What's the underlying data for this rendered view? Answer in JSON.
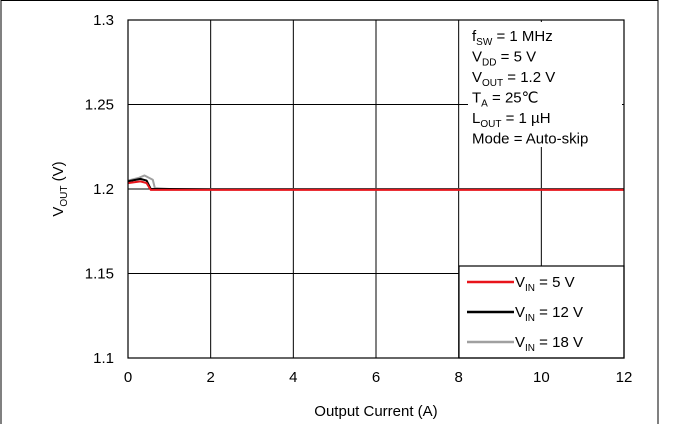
{
  "chart_data": {
    "type": "line",
    "xlabel": "Output Current (A)",
    "ylabel": {
      "main": "V",
      "sub": "OUT",
      "unit": " (V)"
    },
    "xlim": [
      0,
      12
    ],
    "ylim": [
      1.1,
      1.3
    ],
    "x_ticks": [
      0,
      2,
      4,
      6,
      8,
      10,
      12
    ],
    "y_ticks": [
      1.1,
      1.15,
      1.2,
      1.25,
      1.3
    ],
    "x_tick_labels": [
      "0",
      "2",
      "4",
      "6",
      "8",
      "10",
      "12"
    ],
    "y_tick_labels": [
      "1.1",
      "1.15",
      "1.2",
      "1.25",
      "1.3"
    ],
    "grid": true,
    "legend_placement": "bottom-right",
    "annotations": [
      {
        "main": "f",
        "sub": "SW",
        "rest": " = 1 MHz"
      },
      {
        "main": "V",
        "sub": "DD",
        "rest": " = 5 V"
      },
      {
        "main": "V",
        "sub": "OUT",
        "rest": " = 1.2 V"
      },
      {
        "main": "T",
        "sub": "A",
        "rest": " = 25℃"
      },
      {
        "main": "L",
        "sub": "OUT",
        "rest": " = 1 µH"
      },
      {
        "main": "Mode = Auto-skip",
        "sub": "",
        "rest": ""
      }
    ],
    "series": [
      {
        "name": {
          "main": "V",
          "sub": "IN",
          "rest": " = 5 V"
        },
        "color": "#e8141b",
        "x": [
          0,
          0.3,
          0.45,
          0.55,
          1,
          2,
          4,
          6,
          8,
          10,
          12
        ],
        "y": [
          1.2035,
          1.2045,
          1.2035,
          1.1995,
          1.1995,
          1.1995,
          1.1995,
          1.1995,
          1.1995,
          1.1995,
          1.1995
        ]
      },
      {
        "name": {
          "main": "V",
          "sub": "IN",
          "rest": " = 12 V"
        },
        "color": "#000000",
        "x": [
          0,
          0.3,
          0.45,
          0.55,
          1,
          2,
          4,
          6,
          8,
          10,
          12
        ],
        "y": [
          1.2045,
          1.206,
          1.205,
          1.2,
          1.2,
          1.1998,
          1.1998,
          1.1998,
          1.1998,
          1.1998,
          1.1998
        ]
      },
      {
        "name": {
          "main": "V",
          "sub": "IN",
          "rest": " = 18 V"
        },
        "color": "#a0a0a0",
        "x": [
          0,
          0.25,
          0.4,
          0.6,
          0.65,
          1,
          2,
          4,
          6,
          8,
          10,
          12
        ],
        "y": [
          1.205,
          1.2065,
          1.208,
          1.2055,
          1.2005,
          1.2,
          1.2,
          1.2,
          1.2,
          1.2,
          1.2,
          1.2
        ]
      }
    ]
  }
}
